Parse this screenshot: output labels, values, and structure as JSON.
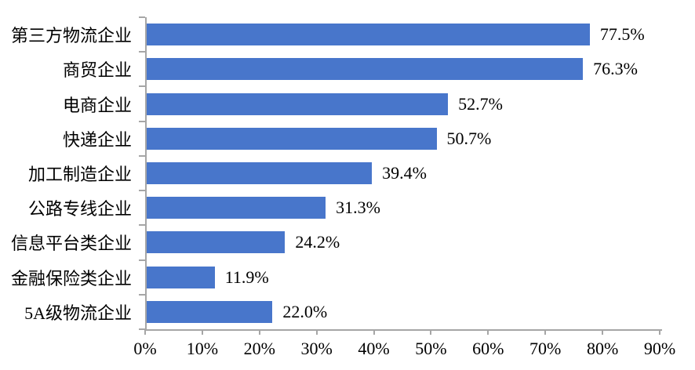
{
  "chart_data": {
    "type": "bar",
    "orientation": "horizontal",
    "title": "",
    "xlabel": "",
    "ylabel": "",
    "categories": [
      "第三方物流企业",
      "商贸企业",
      "电商企业",
      "快递企业",
      "加工制造企业",
      "公路专线企业",
      "信息平台类企业",
      "金融保险类企业",
      "5A级物流企业"
    ],
    "values": [
      77.5,
      76.3,
      52.7,
      50.7,
      39.4,
      31.3,
      24.2,
      11.9,
      22.0
    ],
    "data_labels": [
      "77.5%",
      "76.3%",
      "52.7%",
      "50.7%",
      "39.4%",
      "31.3%",
      "24.2%",
      "11.9%",
      "22.0%"
    ],
    "x_ticks": [
      "0%",
      "10%",
      "20%",
      "30%",
      "40%",
      "50%",
      "60%",
      "70%",
      "80%",
      "90%"
    ],
    "xlim": [
      0,
      90
    ],
    "grid": false,
    "legend": false,
    "colors": {
      "bar": "#4876CB",
      "axis": "#A6A6A6",
      "text": "#000000",
      "background": "#FFFFFF"
    }
  }
}
